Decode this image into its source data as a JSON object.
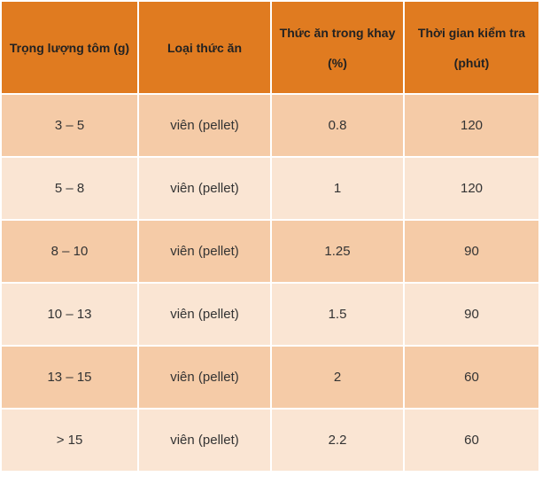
{
  "table": {
    "header": [
      "Trọng lượng tôm (g)",
      "Loại thức ăn",
      "Thức ăn trong khay (%)",
      "Thời gian kiểm tra (phút)"
    ],
    "rows": [
      [
        "3 – 5",
        "viên (pellet)",
        0.8,
        120
      ],
      [
        "5 – 8",
        "viên (pellet)",
        1,
        120
      ],
      [
        "8 – 10",
        "viên (pellet)",
        1.25,
        90
      ],
      [
        "10 – 13",
        "viên (pellet)",
        1.5,
        90
      ],
      [
        "13 – 15",
        "viên (pellet)",
        2,
        60
      ],
      [
        "> 15",
        "viên (pellet)",
        2.2,
        60
      ]
    ]
  }
}
